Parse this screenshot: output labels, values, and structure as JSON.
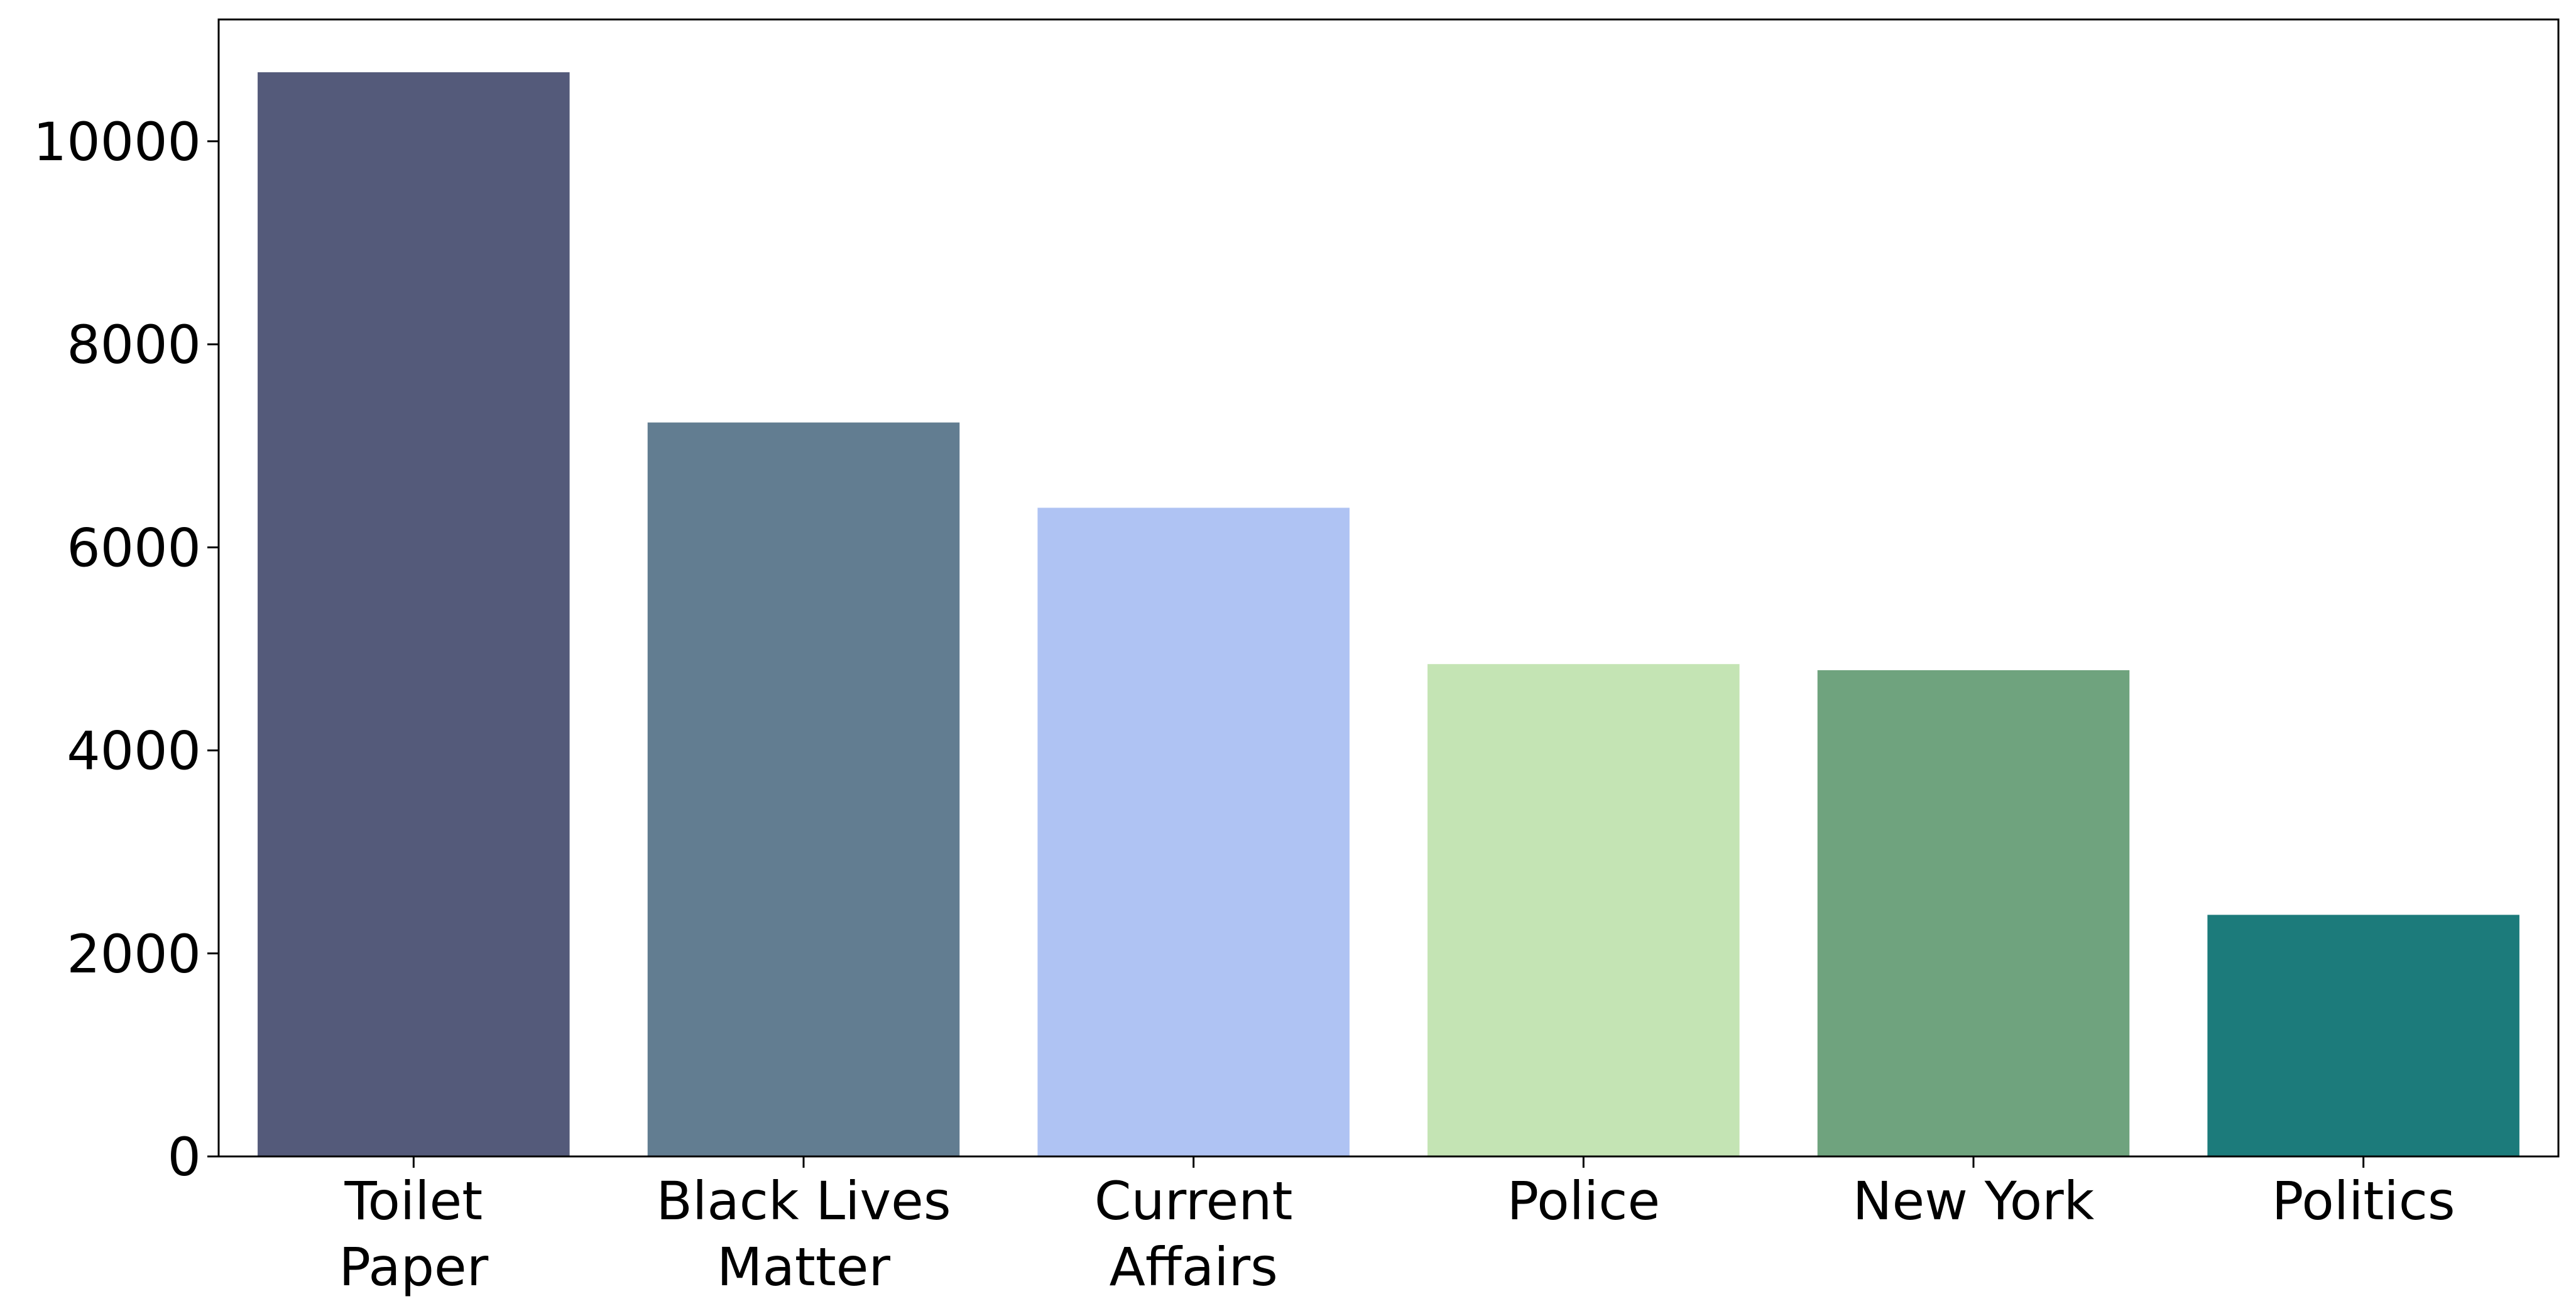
{
  "chart_data": {
    "type": "bar",
    "categories": [
      "Toilet\nPaper",
      "Black Lives\nMatter",
      "Current\nAffairs",
      "Police",
      "New York",
      "Politics"
    ],
    "values": [
      10680,
      7230,
      6390,
      4850,
      4790,
      2380
    ],
    "colors": [
      "#545a7a",
      "#627d91",
      "#afc3f3",
      "#c4e4b4",
      "#6fa37e",
      "#1c7b7b"
    ],
    "ylim": [
      0,
      11200
    ],
    "yticks": [
      0,
      2000,
      4000,
      6000,
      8000,
      10000
    ],
    "grid": false
  }
}
